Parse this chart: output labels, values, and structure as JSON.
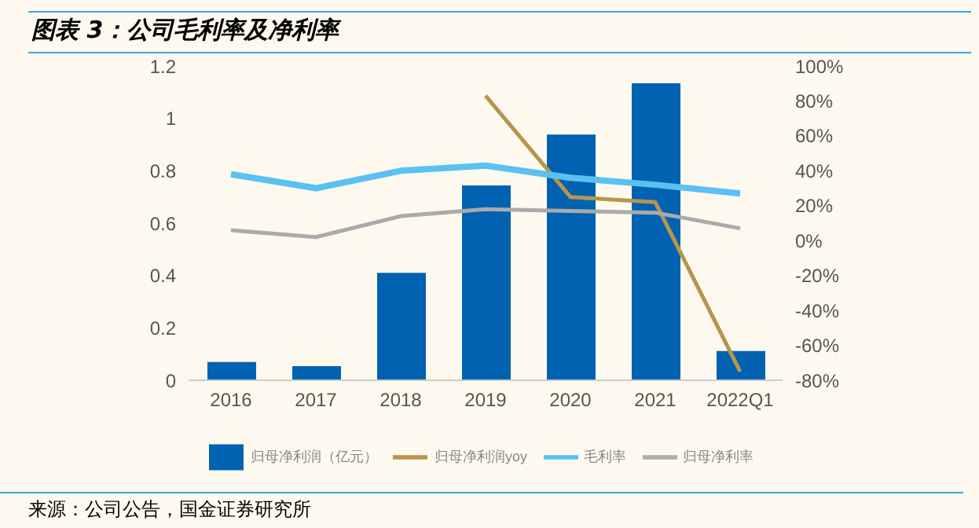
{
  "chart_data": {
    "type": "bar",
    "title": "图表 3：公司毛利率及净利率",
    "categories": [
      "2016",
      "2017",
      "2018",
      "2019",
      "2020",
      "2021",
      "2022Q1"
    ],
    "series": [
      {
        "name": "归母净利润（亿元）",
        "color": "#0062b1",
        "values": [
          0.07,
          0.054,
          0.41,
          0.744,
          0.938,
          1.134,
          0.112
        ]
      },
      {
        "name": "归母净利润yoy",
        "type": "line",
        "axis": "y2",
        "color": "#b8954e",
        "values": [
          null,
          null,
          null,
          83,
          25,
          22,
          -75
        ]
      },
      {
        "name": "毛利率",
        "type": "line",
        "axis": "y2",
        "color": "#5bc0f2",
        "values": [
          38,
          30,
          40,
          43,
          36,
          32,
          27
        ]
      },
      {
        "name": "归母净利率",
        "type": "line",
        "axis": "y2",
        "color": "#aaaaaa",
        "values": [
          6,
          2,
          14,
          18,
          17,
          16,
          7
        ]
      }
    ],
    "ylim": [
      0,
      1.2
    ],
    "yticks": [
      0,
      0.2,
      0.4,
      0.6,
      0.8,
      1,
      1.2
    ],
    "y2lim": [
      -80,
      100
    ],
    "y2ticks": [
      {
        "value": -80,
        "label": "-80%"
      },
      {
        "value": -60,
        "label": "-60%"
      },
      {
        "value": -40,
        "label": "-40%"
      },
      {
        "value": -20,
        "label": "-20%"
      },
      {
        "value": 0,
        "label": "0%"
      },
      {
        "value": 20,
        "label": "20%"
      },
      {
        "value": 40,
        "label": "40%"
      },
      {
        "value": 60,
        "label": "60%"
      },
      {
        "value": 80,
        "label": "80%"
      },
      {
        "value": 100,
        "label": "100%"
      }
    ],
    "grid": false,
    "legend": "bottom",
    "marker": "none",
    "line_style": "solid",
    "annotations": [
      "来源：公司公告，国金证券研究所"
    ]
  }
}
